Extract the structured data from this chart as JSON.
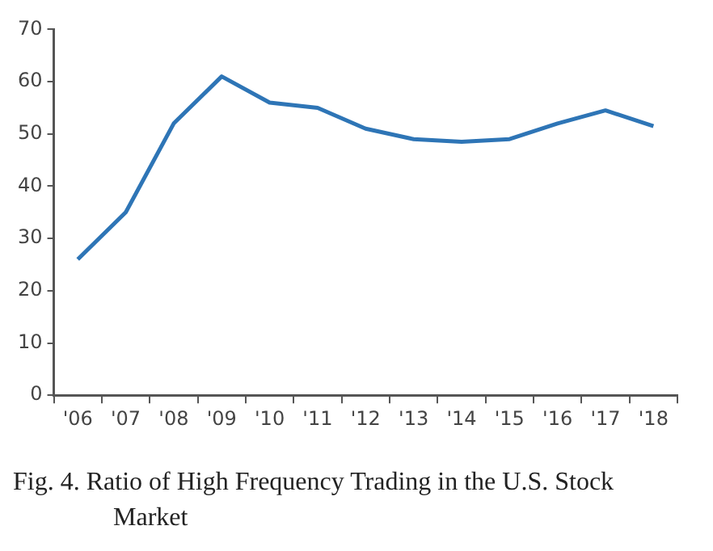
{
  "chart_data": {
    "type": "line",
    "categories": [
      "'06",
      "'07",
      "'08",
      "'09",
      "'10",
      "'11",
      "'12",
      "'13",
      "'14",
      "'15",
      "'16",
      "'17",
      "'18"
    ],
    "series": [
      {
        "color": "#2e75b6",
        "values": [
          26,
          35,
          52,
          61,
          56,
          55,
          51,
          49,
          48.5,
          49,
          52,
          54.5,
          51.5
        ]
      }
    ],
    "ylim": [
      0,
      70
    ],
    "yticks": [
      0,
      10,
      20,
      30,
      40,
      50,
      60,
      70
    ],
    "grid": false,
    "legend": false,
    "marker": "none",
    "line_style": "solid",
    "annotations": [
      "Fig. 4. Ratio of High Frequency Trading in the U.S. Stock Market"
    ]
  }
}
